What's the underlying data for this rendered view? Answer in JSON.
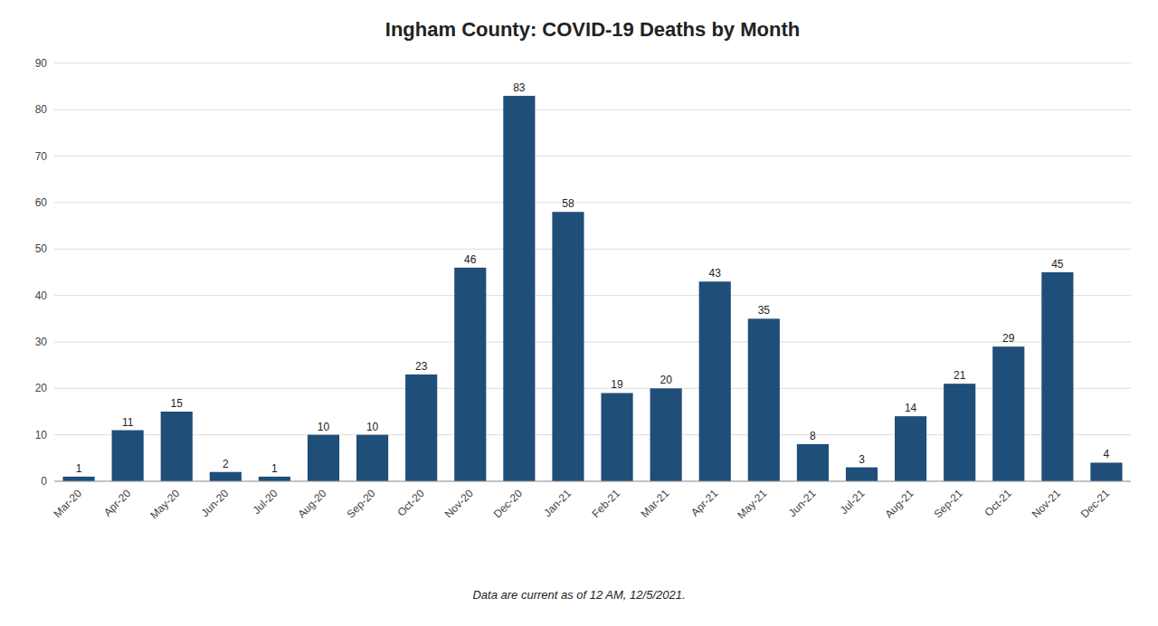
{
  "chart_data": {
    "type": "bar",
    "title": "Ingham County: COVID-19 Deaths by Month",
    "categories": [
      "Mar-20",
      "Apr-20",
      "May-20",
      "Jun-20",
      "Jul-20",
      "Aug-20",
      "Sep-20",
      "Oct-20",
      "Nov-20",
      "Dec-20",
      "Jan-21",
      "Feb-21",
      "Mar-21",
      "Apr-21",
      "May-21",
      "Jun-21",
      "Jul-21",
      "Aug-21",
      "Sep-21",
      "Oct-21",
      "Nov-21",
      "Dec-21"
    ],
    "values": [
      1,
      11,
      15,
      2,
      1,
      10,
      10,
      23,
      46,
      83,
      58,
      19,
      20,
      43,
      35,
      8,
      3,
      14,
      21,
      29,
      45,
      4
    ],
    "color": "#1f4e79",
    "ylim": [
      0,
      90
    ],
    "yticks": [
      0,
      10,
      20,
      30,
      40,
      50,
      60,
      70,
      80,
      90
    ],
    "grid": true,
    "data_labels": true,
    "footnote": "Data are current as of 12 AM, 12/5/2021."
  }
}
